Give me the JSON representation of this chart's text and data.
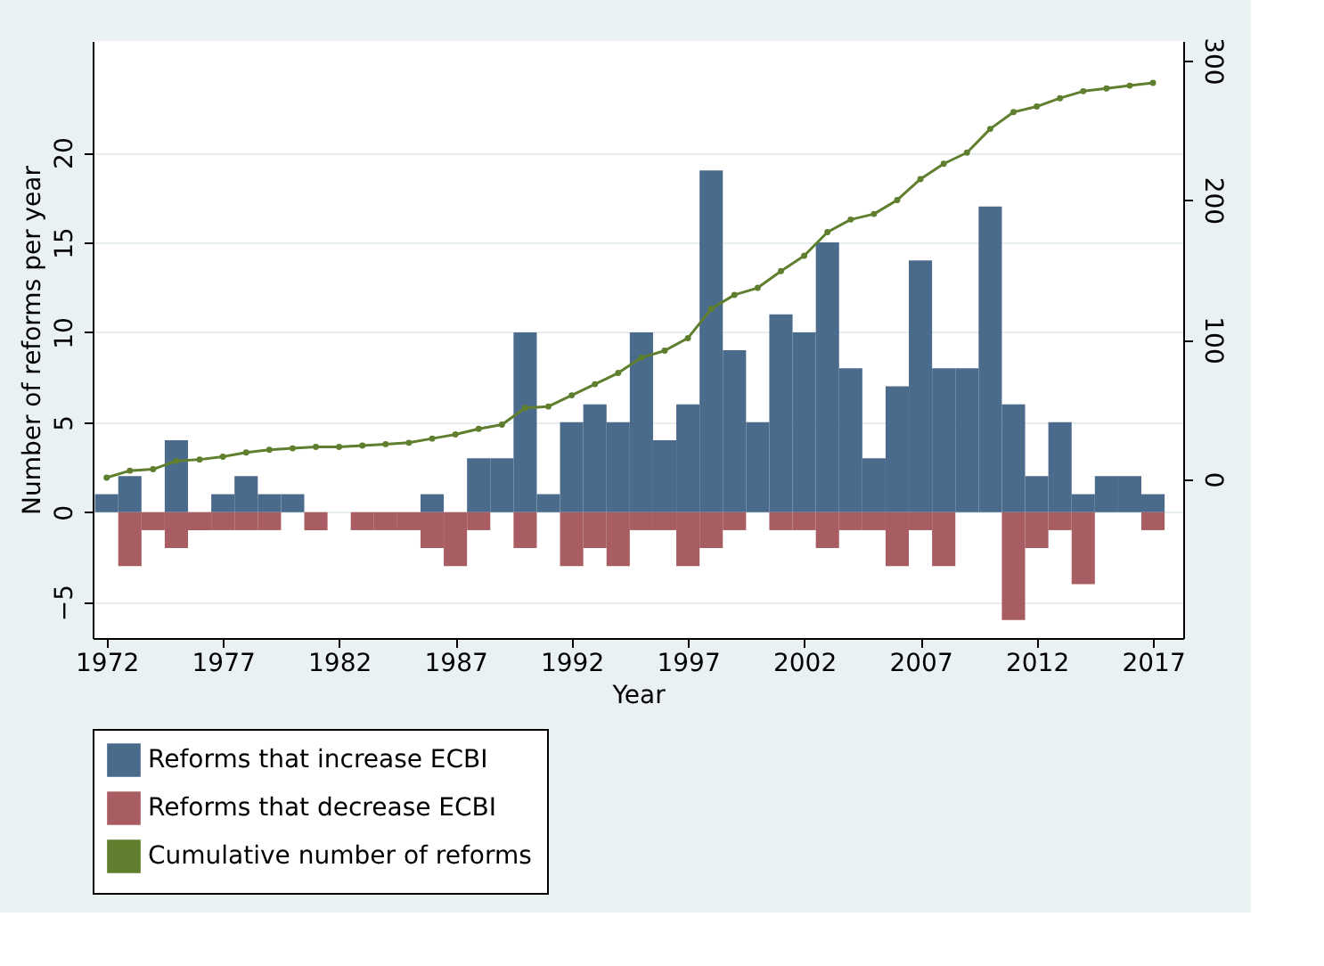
{
  "chart_data": {
    "type": "bar",
    "xlabel": "Year",
    "ylabel": "Number of reforms per year",
    "x": [
      1972,
      1973,
      1974,
      1975,
      1976,
      1977,
      1978,
      1979,
      1980,
      1981,
      1982,
      1983,
      1984,
      1985,
      1986,
      1987,
      1988,
      1989,
      1990,
      1991,
      1992,
      1993,
      1994,
      1995,
      1996,
      1997,
      1998,
      1999,
      2000,
      2001,
      2002,
      2003,
      2004,
      2005,
      2006,
      2007,
      2008,
      2009,
      2010,
      2011,
      2012,
      2013,
      2014,
      2015,
      2016,
      2017
    ],
    "series": [
      {
        "name": "Reforms that increase ECBI",
        "color": "#4a6b8c",
        "values": [
          1,
          2,
          0,
          4,
          0,
          1,
          2,
          1,
          1,
          0,
          0,
          0,
          0,
          0,
          1,
          0,
          3,
          3,
          10,
          1,
          5,
          6,
          5,
          10,
          4,
          6,
          19,
          9,
          5,
          11,
          10,
          15,
          8,
          3,
          7,
          14,
          8,
          8,
          17,
          6,
          2,
          5,
          1,
          2,
          2,
          1
        ]
      },
      {
        "name": "Reforms that decrease ECBI",
        "color": "#a85d62",
        "values": [
          0,
          -3,
          -1,
          -2,
          -1,
          -1,
          -1,
          -1,
          0,
          -1,
          0,
          -1,
          -1,
          -1,
          -2,
          -3,
          -1,
          0,
          -2,
          0,
          -3,
          -2,
          -3,
          -1,
          -1,
          -3,
          -2,
          -1,
          0,
          -1,
          -1,
          -2,
          -1,
          -1,
          -3,
          -1,
          -3,
          0,
          0,
          -6,
          -2,
          -1,
          -4,
          0,
          0,
          -1
        ]
      },
      {
        "name": "Cumulative number of reforms",
        "color": "#5f7f2e",
        "type": "line",
        "axis": "y2",
        "marker": "circle",
        "values": [
          1,
          6,
          7,
          13,
          14,
          16,
          19,
          21,
          22,
          23,
          23,
          24,
          25,
          26,
          29,
          32,
          36,
          39,
          51,
          52,
          60,
          68,
          76,
          87,
          92,
          101,
          122,
          132,
          137,
          149,
          160,
          177,
          186,
          190,
          200,
          215,
          226,
          234,
          251,
          263,
          267,
          273,
          278,
          280,
          282,
          284
        ]
      }
    ],
    "xlim": [
      1971.4,
      2018.3
    ],
    "xticks": [
      1972,
      1977,
      1982,
      1987,
      1992,
      1997,
      2002,
      2007,
      2012,
      2017
    ],
    "ylim": [
      -7,
      26.2
    ],
    "yticks": [
      -5,
      0,
      5,
      10,
      15,
      20
    ],
    "y2lim": [
      -114,
      314
    ],
    "y2ticks": [
      0,
      100,
      200,
      300
    ],
    "grid": "y",
    "legend": "bottom",
    "stacked": true
  }
}
